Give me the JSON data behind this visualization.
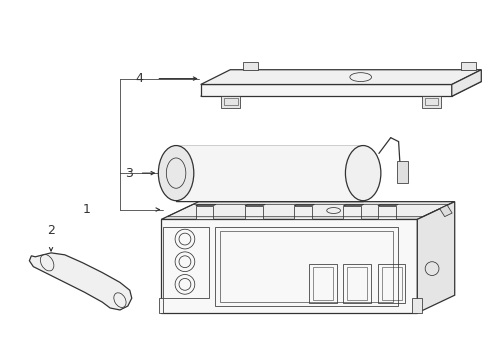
{
  "bg_color": "#ffffff",
  "line_color": "#333333",
  "line_width": 0.9,
  "thin_line": 0.55,
  "fig_width": 4.9,
  "fig_height": 3.6,
  "dpi": 100
}
